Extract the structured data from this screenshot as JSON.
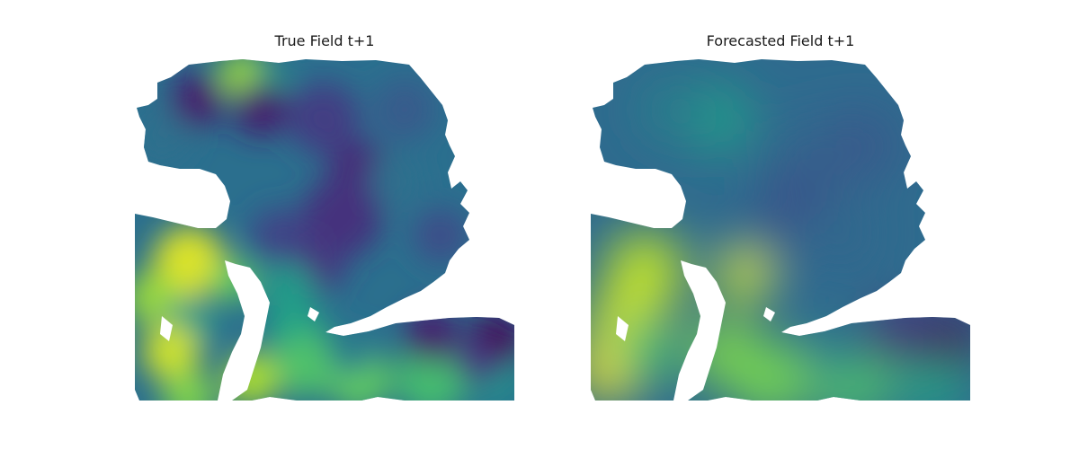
{
  "chart_data": [
    {
      "type": "heatmap",
      "title": "True Field t+1",
      "colormap": "viridis",
      "axes": "off",
      "colorbar": false,
      "field_character": "high-detail",
      "value_range": [
        0,
        1
      ]
    },
    {
      "type": "heatmap",
      "title": "Forecasted Field t+1",
      "colormap": "viridis",
      "axes": "off",
      "colorbar": false,
      "field_character": "smooth",
      "value_range": [
        0,
        1
      ]
    }
  ],
  "colors": {
    "viridis_low": "#440154",
    "viridis_mid": "#21918c",
    "viridis_high": "#fde725",
    "background": "#ffffff"
  }
}
